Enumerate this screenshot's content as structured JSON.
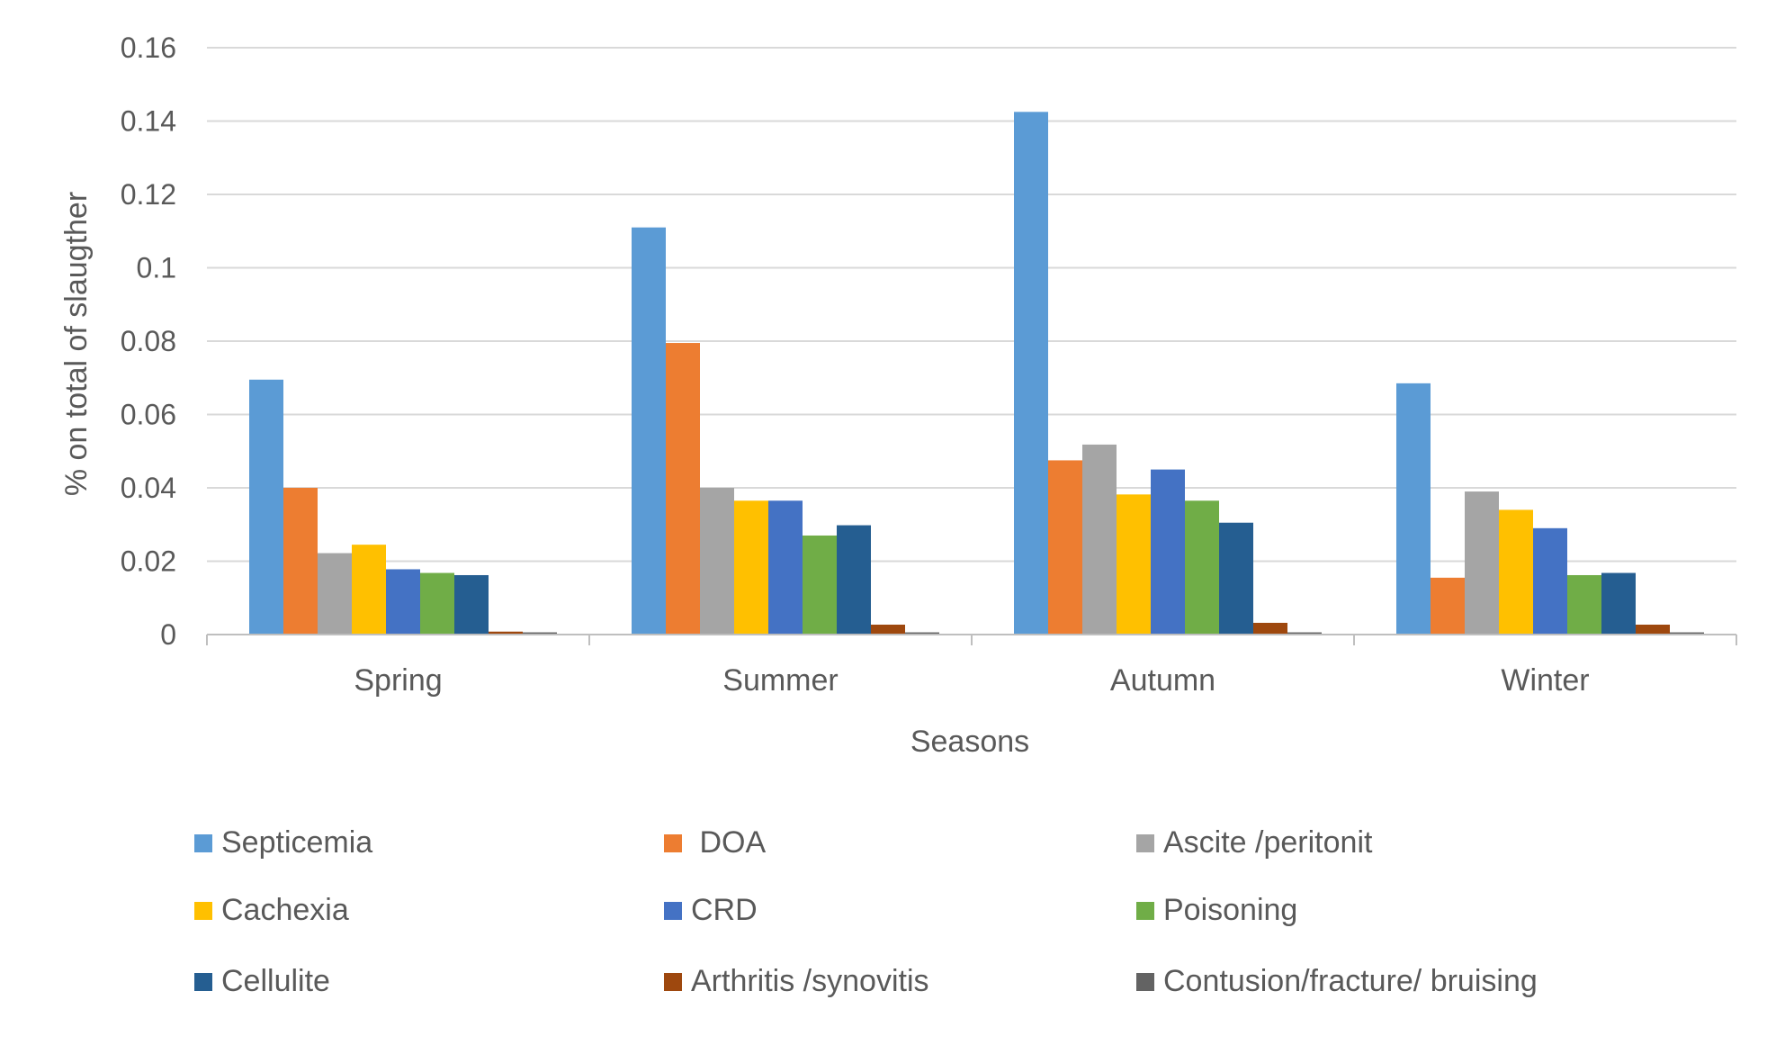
{
  "chart_data": {
    "type": "bar",
    "title": "",
    "xlabel": "Seasons",
    "ylabel": "% on total of slaugther",
    "ylim": [
      0,
      0.16
    ],
    "yticks": [
      "0",
      "0.02",
      "0.04",
      "0.06",
      "0.08",
      "0.1",
      "0.12",
      "0.14",
      "0.16"
    ],
    "grid": true,
    "legend_position": "bottom",
    "categories": [
      "Spring",
      "Summer",
      "Autumn",
      "Winter"
    ],
    "series": [
      {
        "name": "Septicemia",
        "color": "#5b9bd5",
        "values": [
          0.0695,
          0.111,
          0.1425,
          0.0685
        ]
      },
      {
        "name": " DOA",
        "color": "#ed7d31",
        "values": [
          0.04,
          0.0795,
          0.0475,
          0.0155
        ]
      },
      {
        "name": "Ascite /peritonit",
        "color": "#a5a5a5",
        "values": [
          0.0222,
          0.04,
          0.0518,
          0.039
        ]
      },
      {
        "name": "Cachexia",
        "color": "#ffc000",
        "values": [
          0.0245,
          0.0365,
          0.0382,
          0.034
        ]
      },
      {
        "name": "CRD",
        "color": "#4472c4",
        "values": [
          0.0178,
          0.0365,
          0.045,
          0.029
        ]
      },
      {
        "name": "Poisoning",
        "color": "#70ad47",
        "values": [
          0.0168,
          0.027,
          0.0365,
          0.0162
        ]
      },
      {
        "name": "Cellulite",
        "color": "#255e91",
        "values": [
          0.0162,
          0.0298,
          0.0305,
          0.0168
        ]
      },
      {
        "name": "Arthritis /synovitis",
        "color": "#9e480e",
        "values": [
          0.0008,
          0.0027,
          0.0032,
          0.0027
        ]
      },
      {
        "name": "Contusion/fracture/ bruising",
        "color": "#636363",
        "values": [
          0.0006,
          0.0006,
          0.0006,
          0.0006
        ]
      }
    ]
  }
}
